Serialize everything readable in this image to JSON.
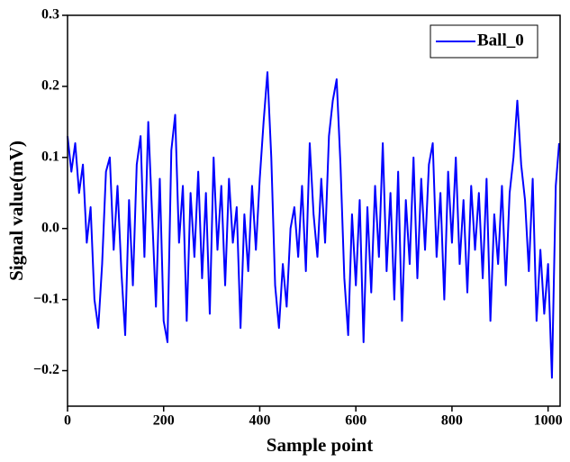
{
  "chart_data": {
    "type": "line",
    "x_label": "Sample point",
    "y_label": "Signal value(mV)",
    "x": [
      0,
      8,
      16,
      24,
      32,
      40,
      48,
      56,
      64,
      72,
      80,
      88,
      96,
      104,
      112,
      120,
      128,
      136,
      144,
      152,
      160,
      168,
      176,
      184,
      192,
      200,
      208,
      216,
      224,
      232,
      240,
      248,
      256,
      264,
      272,
      280,
      288,
      296,
      304,
      312,
      320,
      328,
      336,
      344,
      352,
      360,
      368,
      376,
      384,
      392,
      400,
      408,
      416,
      424,
      432,
      440,
      448,
      456,
      464,
      472,
      480,
      488,
      496,
      504,
      512,
      520,
      528,
      536,
      544,
      552,
      560,
      568,
      576,
      584,
      592,
      600,
      608,
      616,
      624,
      632,
      640,
      648,
      656,
      664,
      672,
      680,
      688,
      696,
      704,
      712,
      720,
      728,
      736,
      744,
      752,
      760,
      768,
      776,
      784,
      792,
      800,
      808,
      816,
      824,
      832,
      840,
      848,
      856,
      864,
      872,
      880,
      888,
      896,
      904,
      912,
      920,
      928,
      936,
      944,
      952,
      960,
      968,
      976,
      984,
      992,
      1000,
      1008,
      1016,
      1023
    ],
    "series": [
      {
        "name": "Ball_0",
        "color": "#0000ff",
        "values": [
          0.13,
          0.08,
          0.12,
          0.05,
          0.09,
          -0.02,
          0.03,
          -0.1,
          -0.14,
          -0.05,
          0.08,
          0.1,
          -0.03,
          0.06,
          -0.06,
          -0.15,
          0.04,
          -0.08,
          0.09,
          0.13,
          -0.04,
          0.15,
          0.02,
          -0.11,
          0.07,
          -0.13,
          -0.16,
          0.11,
          0.16,
          -0.02,
          0.06,
          -0.13,
          0.05,
          -0.04,
          0.08,
          -0.07,
          0.05,
          -0.12,
          0.1,
          -0.03,
          0.06,
          -0.08,
          0.07,
          -0.02,
          0.03,
          -0.14,
          0.02,
          -0.06,
          0.06,
          -0.03,
          0.07,
          0.15,
          0.22,
          0.1,
          -0.08,
          -0.14,
          -0.05,
          -0.11,
          0.0,
          0.03,
          -0.04,
          0.06,
          -0.06,
          0.12,
          0.02,
          -0.04,
          0.07,
          -0.02,
          0.13,
          0.18,
          0.21,
          0.09,
          -0.07,
          -0.15,
          0.02,
          -0.08,
          0.04,
          -0.16,
          0.03,
          -0.09,
          0.06,
          -0.04,
          0.12,
          -0.06,
          0.05,
          -0.1,
          0.08,
          -0.13,
          0.04,
          -0.05,
          0.1,
          -0.07,
          0.07,
          -0.03,
          0.09,
          0.12,
          -0.04,
          0.05,
          -0.1,
          0.08,
          -0.02,
          0.1,
          -0.05,
          0.04,
          -0.09,
          0.06,
          -0.03,
          0.05,
          -0.07,
          0.07,
          -0.13,
          0.02,
          -0.05,
          0.06,
          -0.08,
          0.05,
          0.1,
          0.18,
          0.09,
          0.04,
          -0.06,
          0.07,
          -0.13,
          -0.03,
          -0.12,
          -0.05,
          -0.21,
          0.06,
          0.12
        ]
      }
    ],
    "xlim": [
      0,
      1025
    ],
    "ylim": [
      -0.25,
      0.3
    ],
    "xticks": [
      0,
      200,
      400,
      600,
      800,
      1000
    ],
    "yticks": [
      {
        "value": -0.2,
        "label": "−0.2"
      },
      {
        "value": -0.1,
        "label": "−0.1"
      },
      {
        "value": 0,
        "label": "0.0"
      },
      0.1,
      0.2,
      0.3
    ],
    "legend": "upper right"
  }
}
